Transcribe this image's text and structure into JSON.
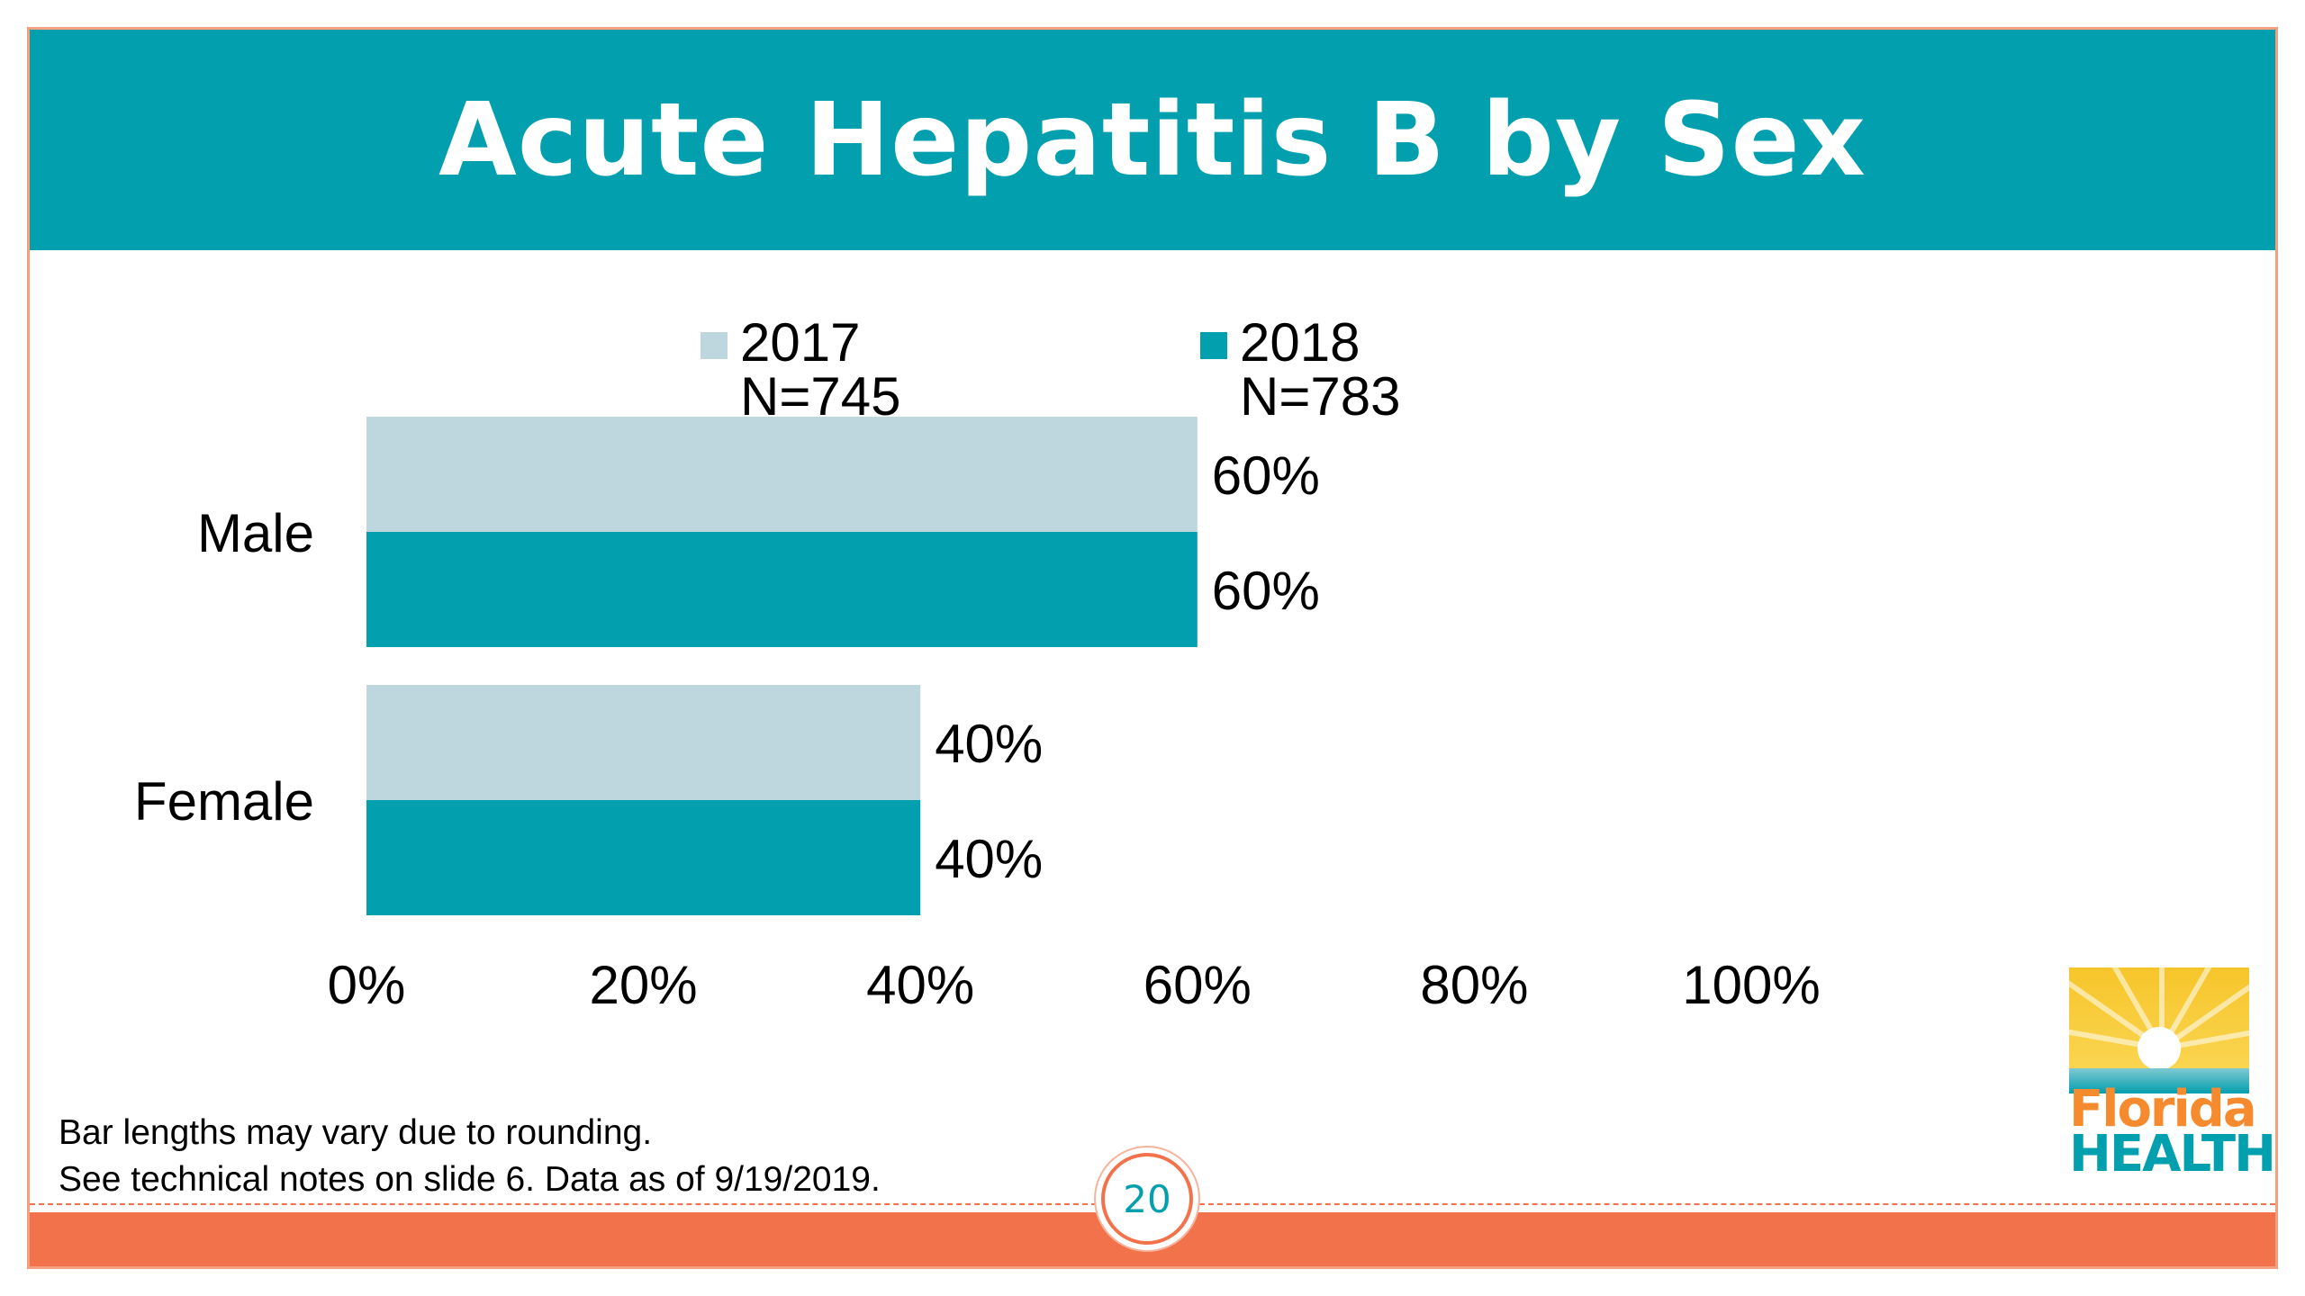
{
  "slide": {
    "title": "Acute Hepatitis B by Sex",
    "page_number": "20",
    "footnote_line1": "Bar lengths may vary due to rounding.",
    "footnote_line2": "See technical notes on slide 6. Data as of 9/19/2019.",
    "logo": {
      "word1": "Florida",
      "word2": "HEALTH"
    }
  },
  "legend": [
    {
      "year": "2017",
      "n": "N=745",
      "color": "#bed6de"
    },
    {
      "year": "2018",
      "n": "N=783",
      "color": "#029fae"
    }
  ],
  "chart_data": {
    "type": "bar",
    "orientation": "horizontal",
    "title": "Acute Hepatitis B by Sex",
    "categories": [
      "Male",
      "Female"
    ],
    "series": [
      {
        "name": "2017 N=745",
        "values": [
          60,
          40
        ],
        "labels": [
          "60%",
          "40%"
        ],
        "color": "#bed6de"
      },
      {
        "name": "2018 N=783",
        "values": [
          60,
          40
        ],
        "labels": [
          "60%",
          "40%"
        ],
        "color": "#029fae"
      }
    ],
    "xlim": [
      0,
      100
    ],
    "xticks": [
      "0%",
      "20%",
      "40%",
      "60%",
      "80%",
      "100%"
    ],
    "xlabel": "",
    "ylabel": "",
    "grid": false,
    "legend_position": "top"
  },
  "colors": {
    "header": "#029fae",
    "accent": "#f2724b"
  }
}
